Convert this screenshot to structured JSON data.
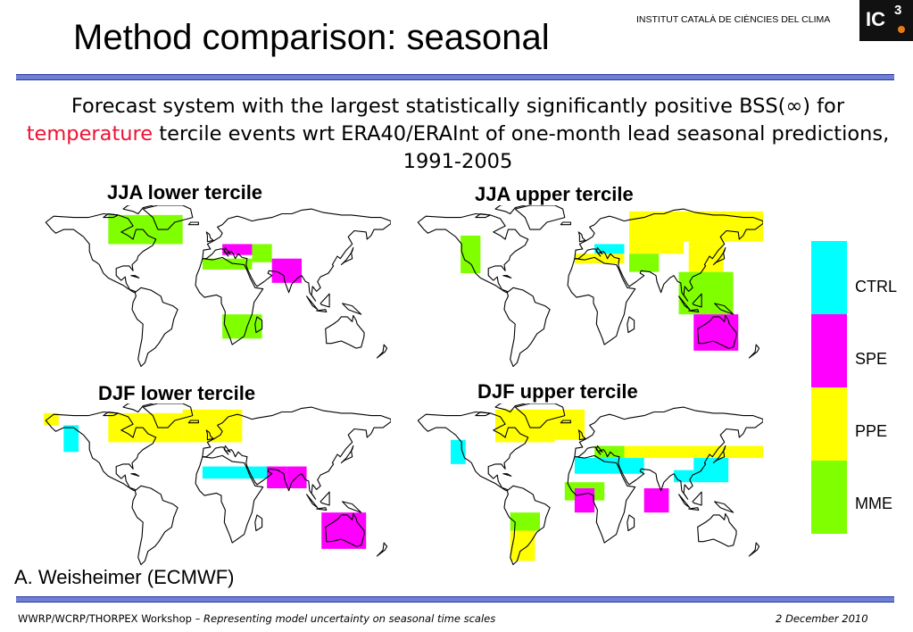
{
  "slide": {
    "title": "Method comparison: seasonal",
    "institute": "INSTITUT CATALÀ DE CIÈNCIES DEL CLIMA",
    "logo_text": "IC",
    "logo_sup": "3",
    "subtitle_before": "Forecast system with the largest statistically significantly positive BSS(∞) for ",
    "subtitle_highlight": "temperature",
    "subtitle_after": " tercile events wrt ERA40/ERAInt of one-month lead seasonal predictions, 1991-2005",
    "author": "A. Weisheimer (ECMWF)",
    "footer_left_plain": "WWRP/WCRP/THORPEX Workshop – ",
    "footer_left_italic": "Representing model uncertainty on seasonal time scales",
    "footer_date": "2 December 2010"
  },
  "panels": [
    {
      "label": "JJA lower tercile",
      "regions": [
        {
          "x0": -105,
          "x1": -30,
          "y0": 72,
          "y1": 48,
          "system": "MME"
        },
        {
          "x0": 10,
          "x1": 40,
          "y0": 48,
          "y1": 39,
          "system": "SPE"
        },
        {
          "x0": 40,
          "x1": 60,
          "y0": 48,
          "y1": 33,
          "system": "MME"
        },
        {
          "x0": -10,
          "x1": 40,
          "y0": 36,
          "y1": 27,
          "system": "MME"
        },
        {
          "x0": 60,
          "x1": 90,
          "y0": 36,
          "y1": 16,
          "system": "SPE"
        },
        {
          "x0": 10,
          "x1": 50,
          "y0": -10,
          "y1": -30,
          "system": "MME"
        }
      ]
    },
    {
      "label": "JJA upper tercile",
      "regions": [
        {
          "x0": -125,
          "x1": -105,
          "y0": 55,
          "y1": 24,
          "system": "MME"
        },
        {
          "x0": 10,
          "x1": 40,
          "y0": 48,
          "y1": 40,
          "system": "CTRL"
        },
        {
          "x0": -10,
          "x1": 40,
          "y0": 40,
          "y1": 32,
          "system": "PPE"
        },
        {
          "x0": 45,
          "x1": 180,
          "y0": 75,
          "y1": 50,
          "system": "PPE"
        },
        {
          "x0": 45,
          "x1": 100,
          "y0": 50,
          "y1": 40,
          "system": "PPE"
        },
        {
          "x0": 105,
          "x1": 140,
          "y0": 50,
          "y1": 25,
          "system": "PPE"
        },
        {
          "x0": 45,
          "x1": 75,
          "y0": 40,
          "y1": 25,
          "system": "MME"
        },
        {
          "x0": 95,
          "x1": 150,
          "y0": 25,
          "y1": -10,
          "system": "MME"
        },
        {
          "x0": 110,
          "x1": 155,
          "y0": -10,
          "y1": -40,
          "system": "SPE"
        }
      ]
    },
    {
      "label": "DJF lower tercile",
      "regions": [
        {
          "x0": -170,
          "x1": -155,
          "y0": 72,
          "y1": 62,
          "system": "PPE"
        },
        {
          "x0": -105,
          "x1": -75,
          "y0": 72,
          "y1": 48,
          "system": "PPE"
        },
        {
          "x0": -150,
          "x1": -135,
          "y0": 62,
          "y1": 40,
          "system": "CTRL"
        },
        {
          "x0": -75,
          "x1": -30,
          "y0": 72,
          "y1": 48,
          "system": "PPE"
        },
        {
          "x0": -30,
          "x1": 30,
          "y0": 75,
          "y1": 48,
          "system": "PPE"
        },
        {
          "x0": -10,
          "x1": 60,
          "y0": 28,
          "y1": 18,
          "system": "CTRL"
        },
        {
          "x0": 55,
          "x1": 75,
          "y0": 28,
          "y1": 10,
          "system": "SPE"
        },
        {
          "x0": 75,
          "x1": 95,
          "y0": 28,
          "y1": 10,
          "system": "SPE"
        },
        {
          "x0": 110,
          "x1": 155,
          "y0": -10,
          "y1": -40,
          "system": "SPE"
        }
      ]
    },
    {
      "label": "DJF upper tercile",
      "regions": [
        {
          "x0": -90,
          "x1": -30,
          "y0": 75,
          "y1": 48,
          "system": "PPE"
        },
        {
          "x0": -30,
          "x1": 0,
          "y0": 75,
          "y1": 50,
          "system": "PPE"
        },
        {
          "x0": -135,
          "x1": -120,
          "y0": 50,
          "y1": 30,
          "system": "CTRL"
        },
        {
          "x0": 40,
          "x1": 180,
          "y0": 45,
          "y1": 35,
          "system": "PPE"
        },
        {
          "x0": 10,
          "x1": 40,
          "y0": 45,
          "y1": 35,
          "system": "MME"
        },
        {
          "x0": -10,
          "x1": 60,
          "y0": 35,
          "y1": 22,
          "system": "CTRL"
        },
        {
          "x0": 110,
          "x1": 145,
          "y0": 35,
          "y1": 15,
          "system": "CTRL"
        },
        {
          "x0": 90,
          "x1": 110,
          "y0": 25,
          "y1": 15,
          "system": "CTRL"
        },
        {
          "x0": -20,
          "x1": 20,
          "y0": 15,
          "y1": 0,
          "system": "MME"
        },
        {
          "x0": -10,
          "x1": 10,
          "y0": 10,
          "y1": -10,
          "system": "SPE"
        },
        {
          "x0": 60,
          "x1": 85,
          "y0": 10,
          "y1": -10,
          "system": "SPE"
        },
        {
          "x0": -75,
          "x1": -45,
          "y0": -10,
          "y1": -25,
          "system": "MME"
        },
        {
          "x0": -75,
          "x1": -50,
          "y0": -25,
          "y1": -50,
          "system": "PPE"
        }
      ]
    }
  ],
  "legend": [
    {
      "label": "CTRL",
      "color": "#00ffff"
    },
    {
      "label": "SPE",
      "color": "#ff00ff"
    },
    {
      "label": "PPE",
      "color": "#ffff00"
    },
    {
      "label": "MME",
      "color": "#80ff00"
    }
  ],
  "colors": {
    "accent_rule": "#6f7fd8",
    "highlight": "#ee1133"
  }
}
